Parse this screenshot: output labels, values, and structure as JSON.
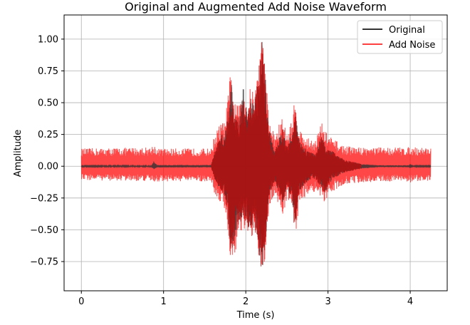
{
  "chart_data": {
    "type": "line",
    "title": "Original and Augmented Add Noise Waveform",
    "xlabel": "Time (s)",
    "ylabel": "Amplitude",
    "xlim": [
      -0.21,
      4.45
    ],
    "ylim": [
      -0.98,
      1.19
    ],
    "xticks": [
      0,
      1,
      2,
      3,
      4
    ],
    "xtick_labels": [
      "0",
      "1",
      "2",
      "3",
      "4"
    ],
    "yticks": [
      -0.75,
      -0.5,
      -0.25,
      0.0,
      0.25,
      0.5,
      0.75,
      1.0
    ],
    "ytick_labels": [
      "−0.75",
      "−0.50",
      "−0.25",
      "0.00",
      "0.25",
      "0.50",
      "0.75",
      "1.00"
    ],
    "grid": true,
    "legend_position": "top-right",
    "x_end": 4.25,
    "series": [
      {
        "name": "Original",
        "color": "#333333",
        "noise_floor": 0.005,
        "envelope": [
          {
            "t": 0.0,
            "pos": 0.004,
            "neg": -0.004
          },
          {
            "t": 0.85,
            "pos": 0.005,
            "neg": -0.005
          },
          {
            "t": 0.88,
            "pos": 0.04,
            "neg": -0.03
          },
          {
            "t": 0.92,
            "pos": 0.01,
            "neg": -0.01
          },
          {
            "t": 1.58,
            "pos": 0.01,
            "neg": -0.01
          },
          {
            "t": 1.62,
            "pos": 0.12,
            "neg": -0.1
          },
          {
            "t": 1.7,
            "pos": 0.25,
            "neg": -0.2
          },
          {
            "t": 1.75,
            "pos": 0.25,
            "neg": -0.25
          },
          {
            "t": 1.78,
            "pos": 0.45,
            "neg": -0.4
          },
          {
            "t": 1.82,
            "pos": 0.7,
            "neg": -0.72
          },
          {
            "t": 1.86,
            "pos": 0.4,
            "neg": -0.68
          },
          {
            "t": 1.92,
            "pos": 0.38,
            "neg": -0.45
          },
          {
            "t": 1.97,
            "pos": 0.62,
            "neg": -0.42
          },
          {
            "t": 2.02,
            "pos": 0.4,
            "neg": -0.45
          },
          {
            "t": 2.05,
            "pos": 0.55,
            "neg": -0.55
          },
          {
            "t": 2.1,
            "pos": 0.5,
            "neg": -0.45
          },
          {
            "t": 2.15,
            "pos": 0.7,
            "neg": -0.6
          },
          {
            "t": 2.19,
            "pos": 1.05,
            "neg": -0.85
          },
          {
            "t": 2.23,
            "pos": 0.8,
            "neg": -0.7
          },
          {
            "t": 2.28,
            "pos": 0.3,
            "neg": -0.25
          },
          {
            "t": 2.35,
            "pos": 0.12,
            "neg": -0.12
          },
          {
            "t": 2.45,
            "pos": 0.3,
            "neg": -0.3
          },
          {
            "t": 2.5,
            "pos": 0.15,
            "neg": -0.15
          },
          {
            "t": 2.57,
            "pos": 0.3,
            "neg": -0.3
          },
          {
            "t": 2.6,
            "pos": 0.45,
            "neg": -0.48
          },
          {
            "t": 2.65,
            "pos": 0.2,
            "neg": -0.2
          },
          {
            "t": 2.75,
            "pos": 0.12,
            "neg": -0.12
          },
          {
            "t": 2.85,
            "pos": 0.1,
            "neg": -0.1
          },
          {
            "t": 2.92,
            "pos": 0.25,
            "neg": -0.18
          },
          {
            "t": 2.97,
            "pos": 0.15,
            "neg": -0.22
          },
          {
            "t": 3.05,
            "pos": 0.12,
            "neg": -0.1
          },
          {
            "t": 3.2,
            "pos": 0.05,
            "neg": -0.05
          },
          {
            "t": 3.4,
            "pos": 0.02,
            "neg": -0.02
          },
          {
            "t": 3.6,
            "pos": 0.008,
            "neg": -0.008
          },
          {
            "t": 3.98,
            "pos": 0.008,
            "neg": -0.008
          },
          {
            "t": 4.0,
            "pos": 0.02,
            "neg": -0.015
          },
          {
            "t": 4.05,
            "pos": 0.004,
            "neg": -0.004
          },
          {
            "t": 4.25,
            "pos": 0.004,
            "neg": -0.004
          }
        ]
      },
      {
        "name": "Add Noise",
        "color": "#ff0000",
        "noise_floor": 0.12,
        "envelope": [
          {
            "t": 0.0,
            "pos": 0.14,
            "neg": -0.11
          },
          {
            "t": 0.85,
            "pos": 0.15,
            "neg": -0.12
          },
          {
            "t": 0.88,
            "pos": 0.18,
            "neg": -0.14
          },
          {
            "t": 0.92,
            "pos": 0.14,
            "neg": -0.12
          },
          {
            "t": 1.58,
            "pos": 0.14,
            "neg": -0.12
          },
          {
            "t": 1.62,
            "pos": 0.25,
            "neg": -0.22
          },
          {
            "t": 1.7,
            "pos": 0.35,
            "neg": -0.3
          },
          {
            "t": 1.75,
            "pos": 0.35,
            "neg": -0.35
          },
          {
            "t": 1.78,
            "pos": 0.55,
            "neg": -0.5
          },
          {
            "t": 1.82,
            "pos": 0.78,
            "neg": -0.8
          },
          {
            "t": 1.86,
            "pos": 0.5,
            "neg": -0.72
          },
          {
            "t": 1.92,
            "pos": 0.48,
            "neg": -0.55
          },
          {
            "t": 1.97,
            "pos": 0.68,
            "neg": -0.5
          },
          {
            "t": 2.02,
            "pos": 0.5,
            "neg": -0.55
          },
          {
            "t": 2.05,
            "pos": 0.62,
            "neg": -0.62
          },
          {
            "t": 2.1,
            "pos": 0.58,
            "neg": -0.55
          },
          {
            "t": 2.15,
            "pos": 0.78,
            "neg": -0.7
          },
          {
            "t": 2.19,
            "pos": 1.07,
            "neg": -0.89
          },
          {
            "t": 2.23,
            "pos": 0.86,
            "neg": -0.78
          },
          {
            "t": 2.28,
            "pos": 0.4,
            "neg": -0.35
          },
          {
            "t": 2.35,
            "pos": 0.25,
            "neg": -0.22
          },
          {
            "t": 2.45,
            "pos": 0.4,
            "neg": -0.4
          },
          {
            "t": 2.5,
            "pos": 0.25,
            "neg": -0.25
          },
          {
            "t": 2.57,
            "pos": 0.4,
            "neg": -0.4
          },
          {
            "t": 2.6,
            "pos": 0.55,
            "neg": -0.58
          },
          {
            "t": 2.65,
            "pos": 0.3,
            "neg": -0.3
          },
          {
            "t": 2.75,
            "pos": 0.22,
            "neg": -0.22
          },
          {
            "t": 2.85,
            "pos": 0.22,
            "neg": -0.2
          },
          {
            "t": 2.92,
            "pos": 0.35,
            "neg": -0.28
          },
          {
            "t": 2.97,
            "pos": 0.28,
            "neg": -0.3
          },
          {
            "t": 3.05,
            "pos": 0.22,
            "neg": -0.2
          },
          {
            "t": 3.2,
            "pos": 0.16,
            "neg": -0.14
          },
          {
            "t": 3.4,
            "pos": 0.15,
            "neg": -0.13
          },
          {
            "t": 3.6,
            "pos": 0.15,
            "neg": -0.12
          },
          {
            "t": 3.98,
            "pos": 0.15,
            "neg": -0.12
          },
          {
            "t": 4.0,
            "pos": 0.16,
            "neg": -0.13
          },
          {
            "t": 4.05,
            "pos": 0.15,
            "neg": -0.12
          },
          {
            "t": 4.25,
            "pos": 0.15,
            "neg": -0.12
          }
        ]
      }
    ]
  }
}
